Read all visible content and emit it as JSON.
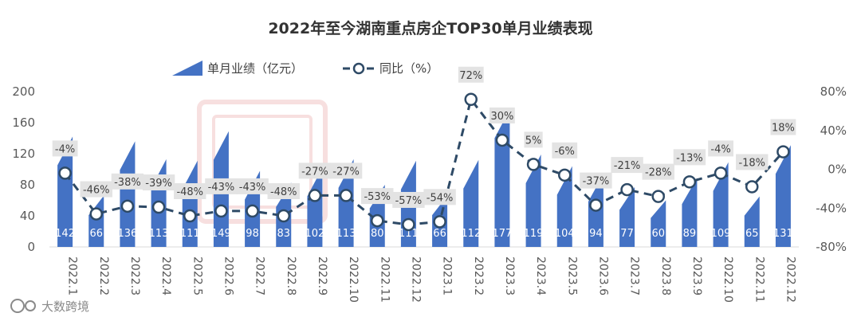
{
  "chart_data": {
    "type": "bar",
    "title": "2022年至今湖南重点房企TOP30单月业绩表现",
    "legend": [
      {
        "name": "单月业绩（亿元）",
        "kind": "bar",
        "color": "#4472c4"
      },
      {
        "name": "同比（%）",
        "kind": "line",
        "color": "#2e4a66"
      }
    ],
    "categories": [
      "2022.1",
      "2022.2",
      "2022.3",
      "2022.4",
      "2022.5",
      "2022.6",
      "2022.7",
      "2022.8",
      "2022.9",
      "2022.10",
      "2022.11",
      "2022.12",
      "2023.1",
      "2023.2",
      "2023.3",
      "2023.4",
      "2023.5",
      "2023.6",
      "2023.7",
      "2023.8",
      "2023.9",
      "2022.10",
      "2022.11",
      "2022.12"
    ],
    "series": [
      {
        "name": "单月业绩（亿元）",
        "type": "bar",
        "axis": "left",
        "values": [
          142,
          66,
          136,
          113,
          111,
          149,
          98,
          83,
          102,
          113,
          80,
          111,
          66,
          112,
          177,
          119,
          104,
          94,
          77,
          60,
          89,
          109,
          65,
          131
        ],
        "value_labels": [
          "142",
          "66",
          "136",
          "113",
          "111",
          "149",
          "98",
          "83",
          "102",
          "113",
          "80",
          "111",
          "66",
          "112",
          "177",
          "119",
          "104",
          "94",
          "77",
          "60",
          "89",
          "109",
          "65",
          "131"
        ]
      },
      {
        "name": "同比（%）",
        "type": "line",
        "axis": "right",
        "values": [
          -4,
          -46,
          -38,
          -39,
          -48,
          -43,
          -43,
          -48,
          -27,
          -27,
          -53,
          -57,
          -54,
          72,
          30,
          5,
          -6,
          -37,
          -21,
          -28,
          -13,
          -4,
          -18,
          18
        ],
        "value_labels": [
          "-4%",
          "-46%",
          "-38%",
          "-39%",
          "-48%",
          "-43%",
          "-43%",
          "-48%",
          "-27%",
          "-27%",
          "-53%",
          "-57%",
          "-54%",
          "72%",
          "30%",
          "5%",
          "-6%",
          "-37%",
          "-21%",
          "-28%",
          "-13%",
          "-4%",
          "-18%",
          "18%"
        ]
      }
    ],
    "y_left": {
      "ylim": [
        0,
        200
      ],
      "ticks": [
        "0",
        "40",
        "80",
        "120",
        "160",
        "200"
      ]
    },
    "y_right": {
      "ylim": [
        -80,
        80
      ],
      "ticks": [
        "-80%",
        "-40%",
        "0%",
        "40%",
        "80%"
      ]
    },
    "grid": false,
    "legend_position": "top"
  },
  "watermark_text": "大数跨境",
  "colors": {
    "bar": "#4472c4",
    "line": "#2e4a66",
    "marker_fill": "#ffffff",
    "label_bg": "#e3e3e3"
  }
}
